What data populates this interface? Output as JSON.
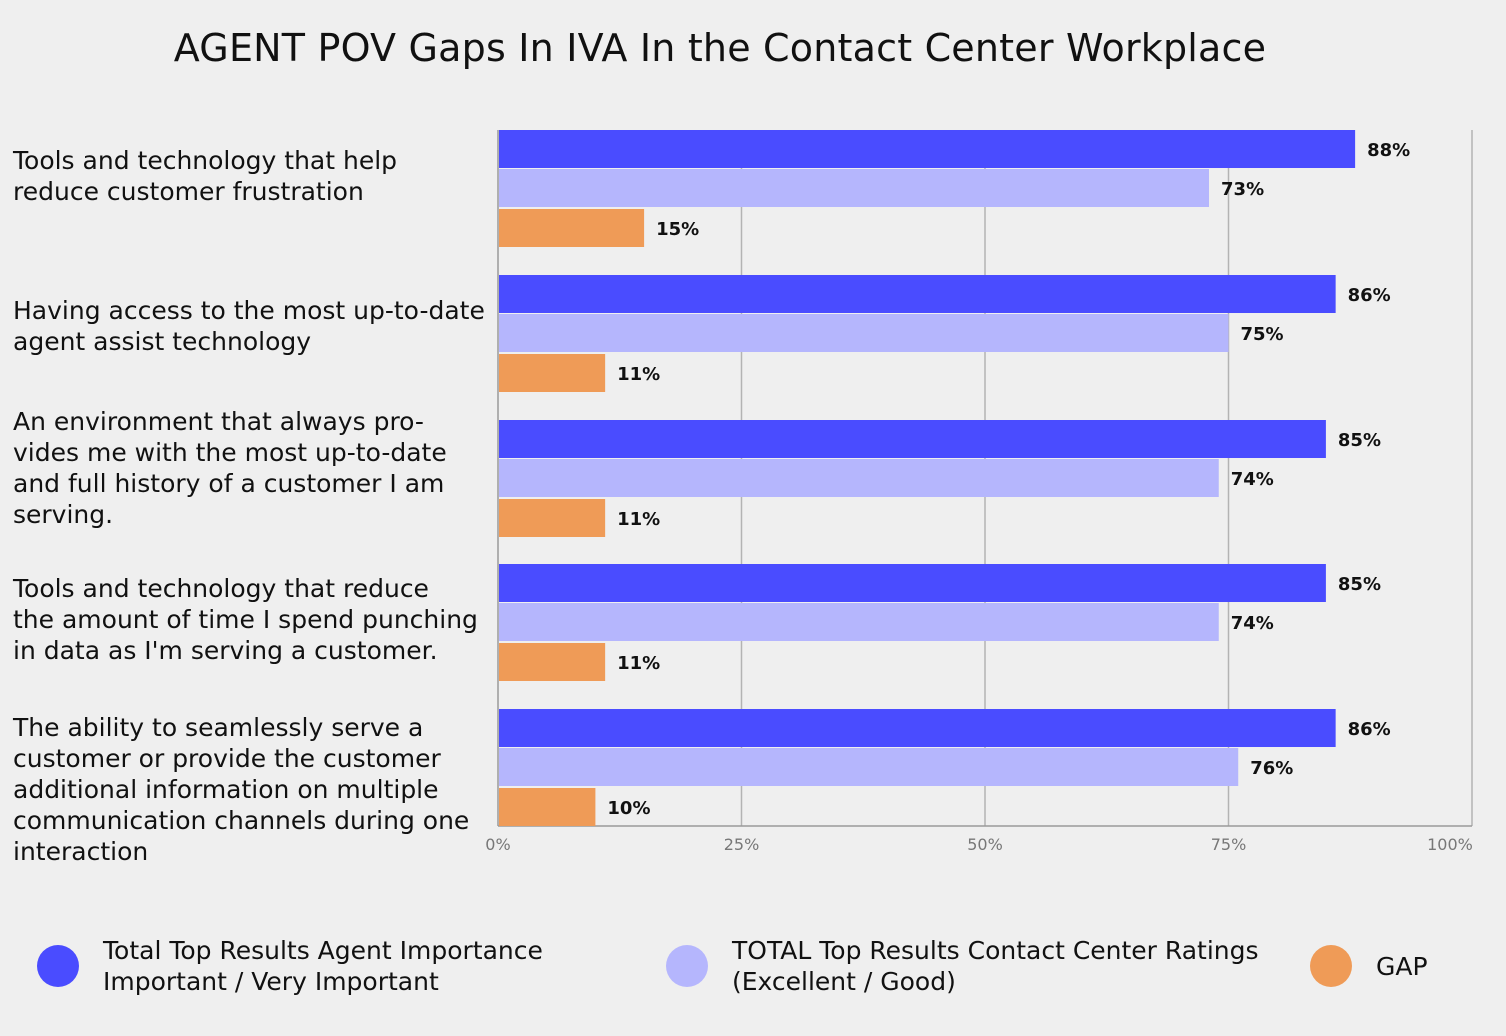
{
  "chart_data": {
    "type": "bar",
    "orientation": "horizontal",
    "title": "AGENT POV Gaps In IVA In the Contact Center Workplace",
    "categories": [
      "Tools and technology that help\nreduce customer frustration",
      "Having access to the most up-to-date\nagent assist technology",
      "An environment that always pro-\nvides me with the most up-to-date\nand full history of a customer I am\nserving.",
      "Tools and technology that reduce\nthe amount of time I spend punching\nin data as I'm serving a customer.",
      "The ability to seamlessly serve a\ncustomer or provide the customer\nadditional information on multiple\ncommunication channels during one\ninteraction"
    ],
    "series": [
      {
        "name": "Total Top Results Agent Importance\nImportant / Very Important",
        "color": "#4a4cff",
        "values": [
          88,
          86,
          85,
          85,
          86
        ],
        "labels": [
          "88%",
          "86%",
          "85%",
          "85%",
          "86%"
        ]
      },
      {
        "name": "TOTAL Top Results Contact Center Ratings\n(Excellent / Good)",
        "color": "#b5b6fd",
        "values": [
          73,
          75,
          74,
          74,
          76
        ],
        "labels": [
          "73%",
          "75%",
          "74%",
          "74%",
          "76%"
        ]
      },
      {
        "name": "GAP",
        "color": "#ef9b57",
        "values": [
          15,
          11,
          11,
          11,
          10
        ],
        "labels": [
          "15%",
          "11%",
          "11%",
          "11%",
          "10%"
        ]
      }
    ],
    "xlim": [
      0,
      100
    ],
    "xticks": [
      0,
      25,
      50,
      75,
      100
    ],
    "xtick_labels": [
      "0%",
      "25%",
      "50%",
      "75%",
      "100%"
    ],
    "grid": true,
    "legend_position": "bottom"
  }
}
